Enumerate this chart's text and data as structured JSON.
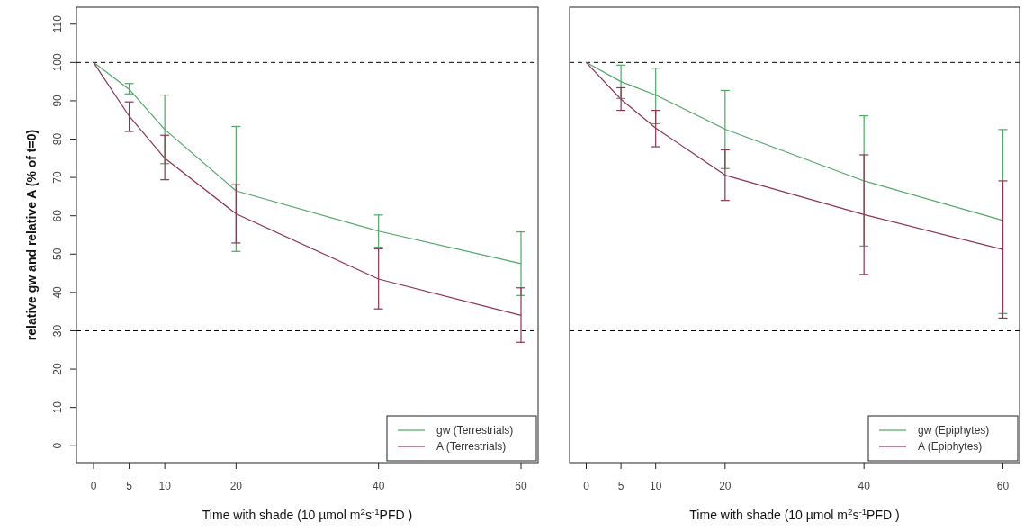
{
  "chart_data": [
    {
      "type": "line",
      "xlabel": "Time with shade (10 µmol m$^{2}$s$^{-1}$PFD )",
      "ylabel": "relative gw and relative A (% of t=0)",
      "x": [
        0,
        5,
        10,
        20,
        40,
        60
      ],
      "xlim": [
        -2.4,
        62.4
      ],
      "xticks": [
        0,
        5,
        10,
        20,
        40,
        60
      ],
      "ylim": [
        -4.4,
        114.4
      ],
      "yticks": [
        0,
        10,
        20,
        30,
        40,
        50,
        60,
        70,
        80,
        90,
        100,
        110
      ],
      "legend": "bottom right",
      "line_style": "solid",
      "series": [
        {
          "name": "gw (Terrestrials)",
          "color": "#4fa866",
          "values": [
            100,
            93,
            82.5,
            66.5,
            56,
            47.5
          ],
          "errors": [
            null,
            [
              91.8,
              94.5
            ],
            [
              73.6,
              91.5
            ],
            [
              50.7,
              83.3
            ],
            [
              51.8,
              60.2
            ],
            [
              39.2,
              55.8
            ]
          ]
        },
        {
          "name": "A (Terrestrials)",
          "color": "#8c3550",
          "values": [
            100,
            86,
            75,
            60.5,
            43.5,
            34
          ],
          "errors": [
            null,
            [
              82,
              89.7
            ],
            [
              69.4,
              81
            ],
            [
              52.9,
              68.1
            ],
            [
              35.7,
              51.4
            ],
            [
              27,
              41.2
            ]
          ]
        }
      ],
      "ref_lines": [
        {
          "axis": "y",
          "value": 100,
          "color": "#000000",
          "line_style": "dashed"
        },
        {
          "axis": "y",
          "value": 30,
          "color": "#000000",
          "line_style": "dashed"
        }
      ]
    },
    {
      "type": "line",
      "xlabel": "Time with shade (10 µmol m$^{2}$s$^{-1}$PFD )",
      "x": [
        0,
        5,
        10,
        20,
        40,
        60
      ],
      "xlim": [
        -2.4,
        62.4
      ],
      "xticks": [
        0,
        5,
        10,
        20,
        40,
        60
      ],
      "ylim": [
        -4.4,
        114.4
      ],
      "tick_labels": "x",
      "legend": "bottom right",
      "line_style": "solid",
      "series": [
        {
          "name": "gw (Epiphytes)",
          "color": "#4fa866",
          "values": [
            100,
            95,
            91.5,
            82.6,
            69.1,
            58.8
          ],
          "errors": [
            null,
            [
              90.6,
              99.3
            ],
            [
              84,
              98.5
            ],
            [
              72.3,
              92.7
            ],
            [
              52.1,
              86.1
            ],
            [
              34.5,
              82.5
            ]
          ]
        },
        {
          "name": "A (Epiphytes)",
          "color": "#8c3550",
          "values": [
            100,
            90.4,
            82.9,
            70.6,
            60.3,
            51.2
          ],
          "errors": [
            null,
            [
              87.5,
              93.4
            ],
            [
              78,
              87.5
            ],
            [
              64,
              77.2
            ],
            [
              44.7,
              75.9
            ],
            [
              33.3,
              69.1
            ]
          ]
        }
      ],
      "ref_lines": [
        {
          "axis": "y",
          "value": 100,
          "color": "#000000",
          "line_style": "dashed"
        },
        {
          "axis": "y",
          "value": 30,
          "color": "#000000",
          "line_style": "dashed"
        }
      ]
    }
  ]
}
